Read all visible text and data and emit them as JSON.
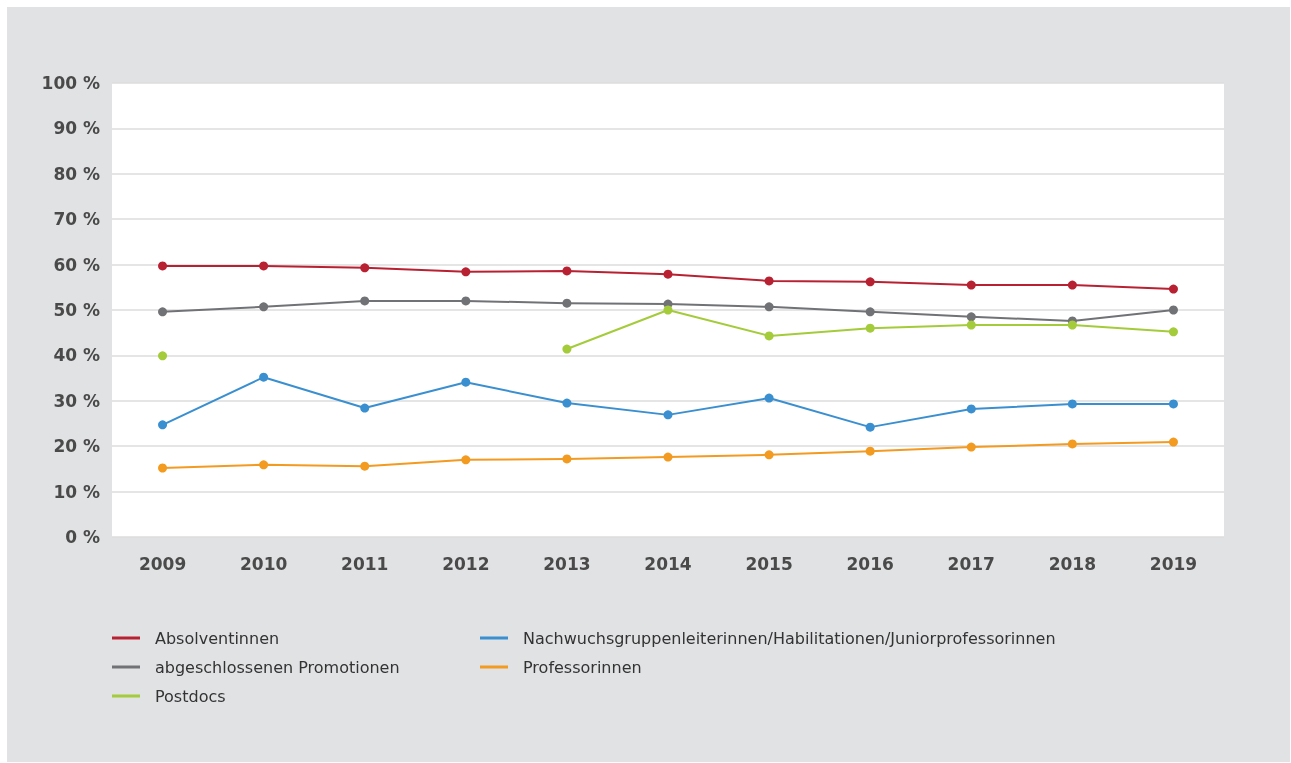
{
  "chart_data": {
    "type": "line",
    "categories": [
      "2009",
      "2010",
      "2011",
      "2012",
      "2013",
      "2014",
      "2015",
      "2016",
      "2017",
      "2018",
      "2019"
    ],
    "series": [
      {
        "name": "Absolventinnen",
        "color": "#b82132",
        "values": [
          59.7,
          59.7,
          59.3,
          58.4,
          58.6,
          57.9,
          56.4,
          56.2,
          55.5,
          55.5,
          54.6
        ]
      },
      {
        "name": "abgeschlossenen Promotionen",
        "color": "#717275",
        "values": [
          49.6,
          50.7,
          52.0,
          52.0,
          51.5,
          51.3,
          50.7,
          49.6,
          48.5,
          47.6,
          50.0
        ]
      },
      {
        "name": "Postdocs",
        "color": "#a4cb3a",
        "values": [
          39.9,
          null,
          null,
          null,
          41.4,
          50.0,
          44.3,
          46.0,
          46.7,
          46.7,
          45.2
        ]
      },
      {
        "name": "Nachwuchsgruppenleiterinnen/Habilitationen/Juniorprofessorinnen",
        "color": "#3a8fd0",
        "values": [
          24.7,
          35.2,
          28.4,
          34.1,
          29.5,
          26.9,
          30.6,
          24.2,
          28.2,
          29.3,
          29.3
        ]
      },
      {
        "name": "Professorinnen",
        "color": "#f39a21",
        "values": [
          15.2,
          15.9,
          15.6,
          17.0,
          17.2,
          17.6,
          18.1,
          18.9,
          19.8,
          20.5,
          20.9
        ]
      }
    ],
    "ylim": [
      0,
      100
    ],
    "yticks": [
      {
        "value": 0,
        "label": "0 %"
      },
      {
        "value": 10,
        "label": "10 %"
      },
      {
        "value": 20,
        "label": "20 %"
      },
      {
        "value": 30,
        "label": "30 %"
      },
      {
        "value": 40,
        "label": "40 %"
      },
      {
        "value": 50,
        "label": "50 %"
      },
      {
        "value": 60,
        "label": "60 %"
      },
      {
        "value": 70,
        "label": "70 %"
      },
      {
        "value": 80,
        "label": "80 %"
      },
      {
        "value": 90,
        "label": "90 %"
      },
      {
        "value": 100,
        "label": "100 %"
      }
    ],
    "grid": "y",
    "legend": "bottom",
    "marker": "circle",
    "line_style": "solid"
  }
}
